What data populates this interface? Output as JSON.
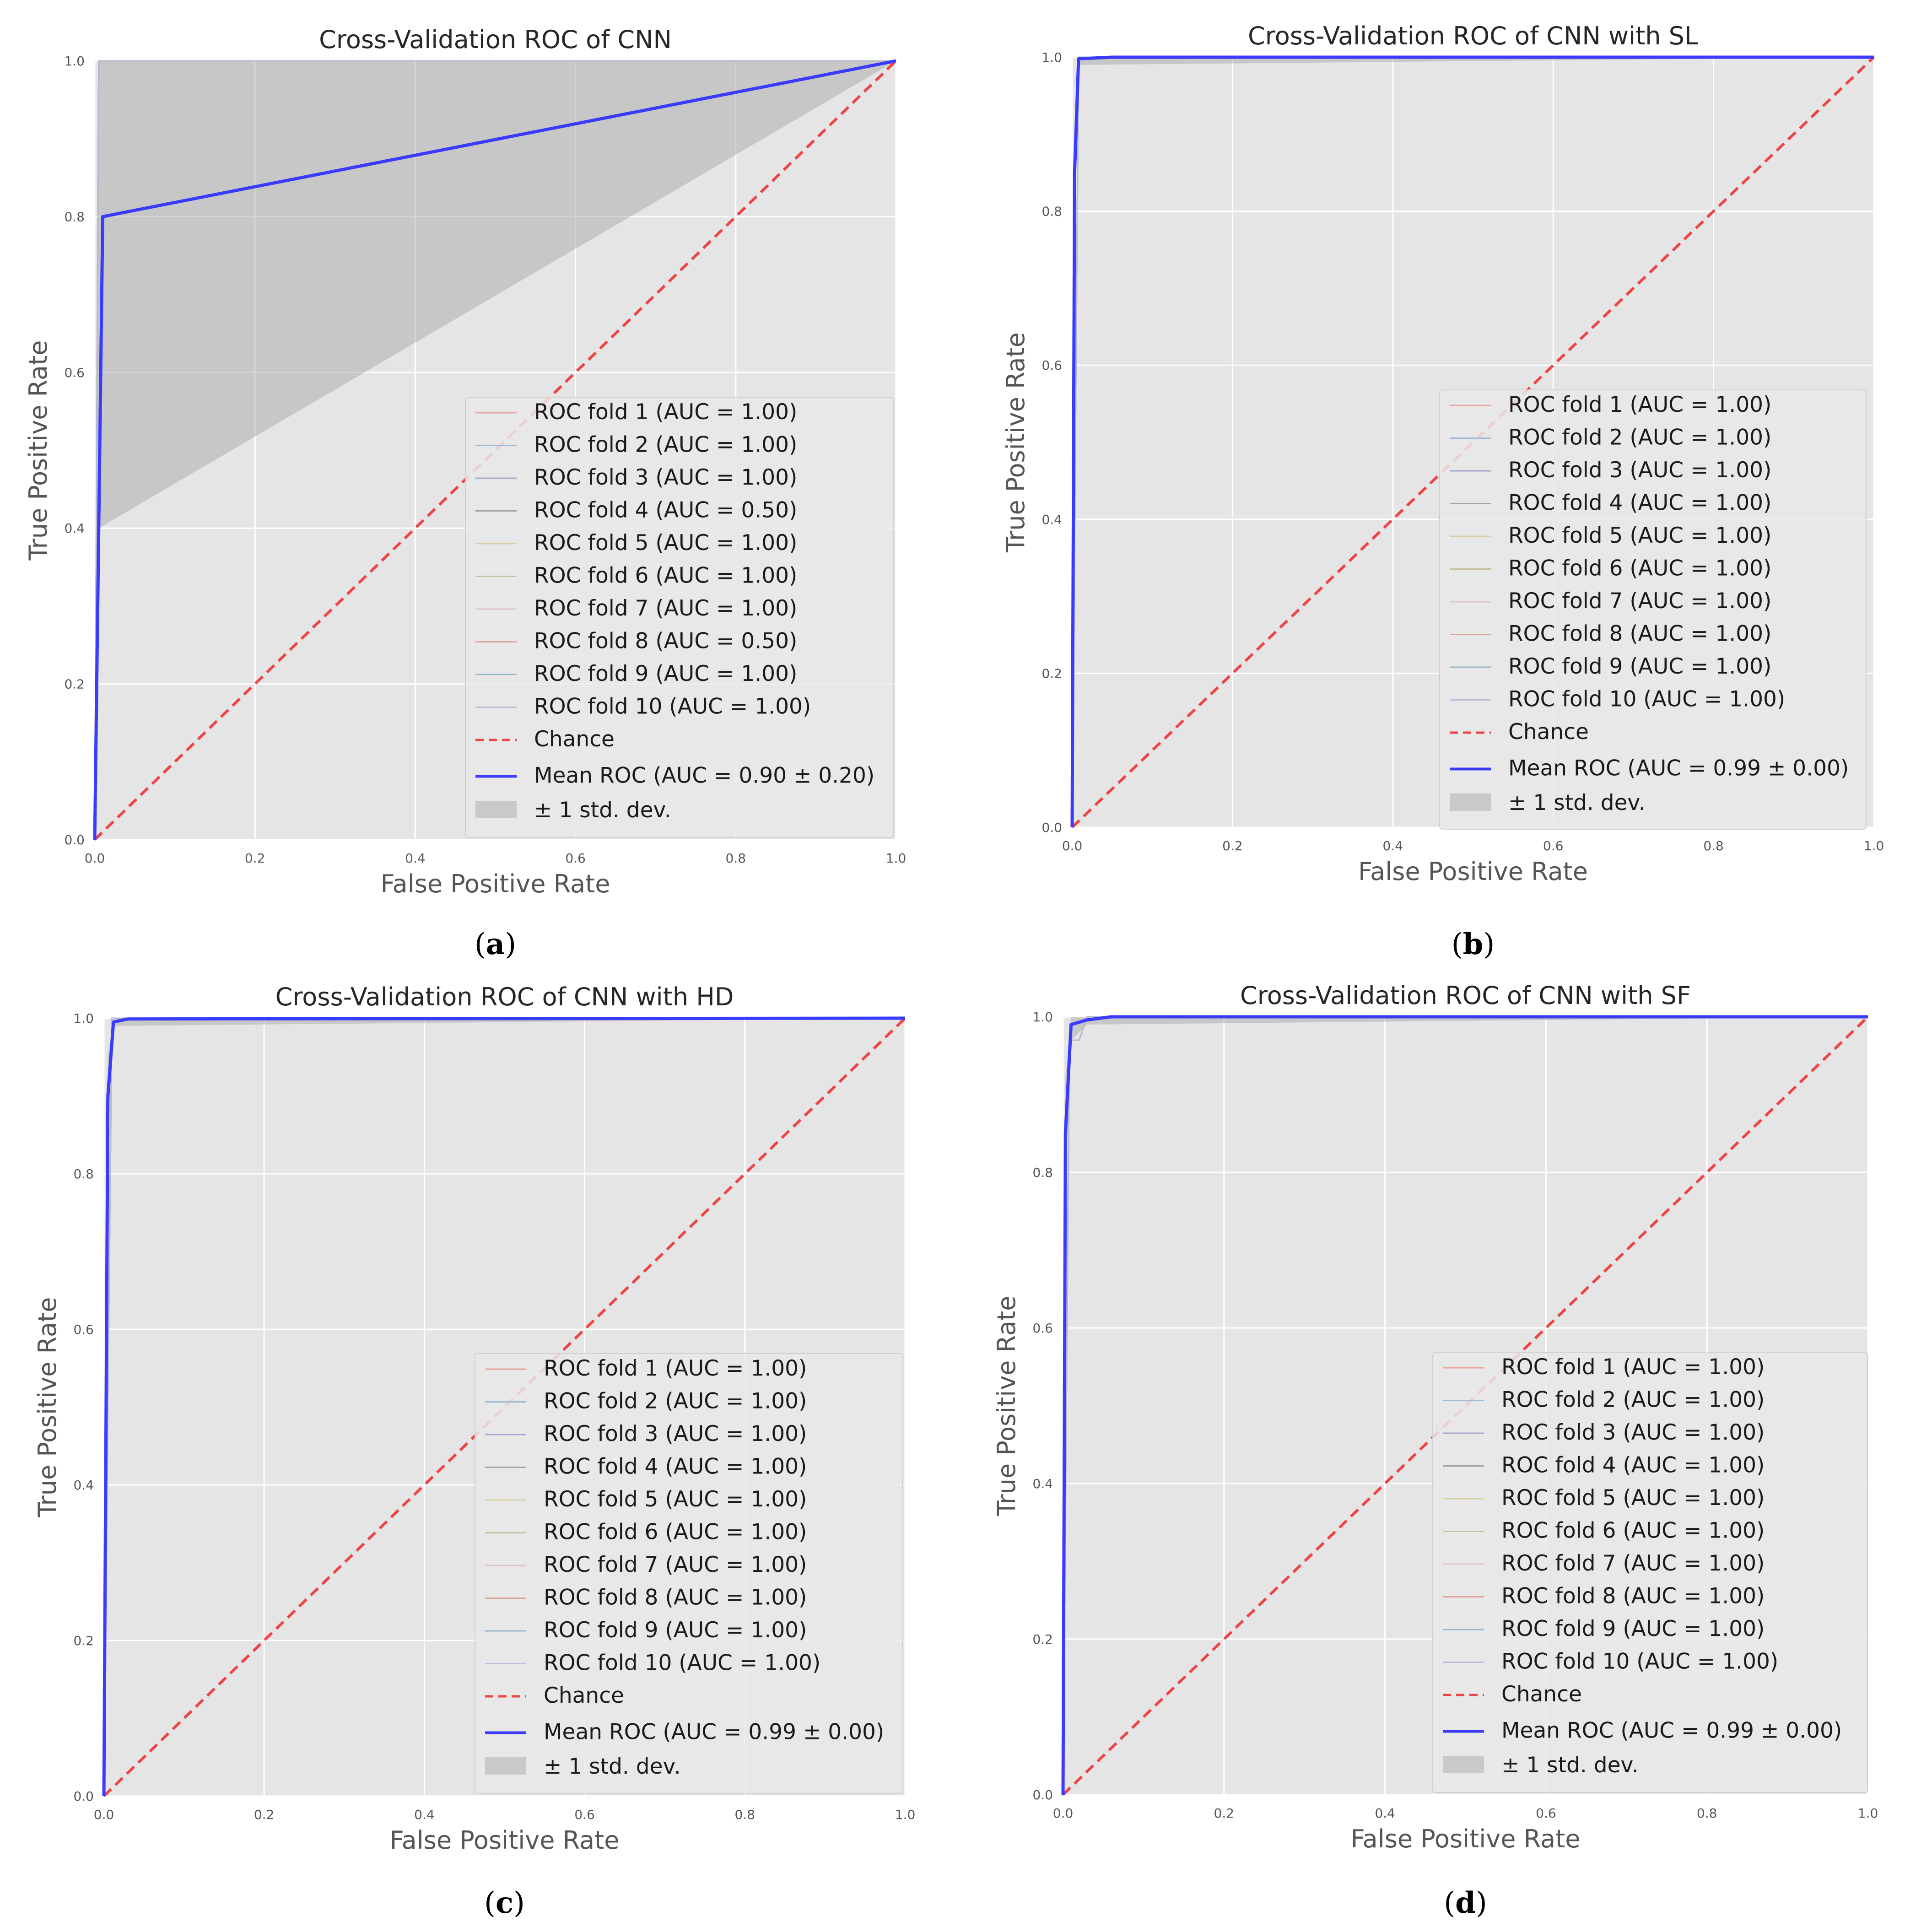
{
  "figure": {
    "background": "#ffffff"
  },
  "colors": {
    "plot_bg": "#e5e5e5",
    "grid": "#ffffff",
    "mean": "#3b3bff",
    "chance": "#ee4444",
    "band": "#a9a9a9",
    "legend_bg": "#e9e9e9",
    "legend_border": "#d0d0d0",
    "fold_colors": [
      "#e8a59a",
      "#9fbad6",
      "#a6a9cf",
      "#9fa6ad",
      "#d8d0a4",
      "#c5c29c",
      "#e0c2c2",
      "#dda594",
      "#98b8cc",
      "#b9bedd"
    ]
  },
  "chart_data": [
    {
      "type": "line",
      "panel": "a",
      "caption": "(a)",
      "caption_letter": "a",
      "title": "Cross-Validation ROC of CNN",
      "xlabel": "False Positive Rate",
      "ylabel": "True Positive Rate",
      "xlim": [
        0,
        1
      ],
      "ylim": [
        0,
        1
      ],
      "xticks": [
        "0.0",
        "0.2",
        "0.4",
        "0.6",
        "0.8",
        "1.0"
      ],
      "yticks": [
        "0.0",
        "0.2",
        "0.4",
        "0.6",
        "0.8",
        "1.0"
      ],
      "grid": true,
      "legend_position": "lower-right",
      "folds": [
        {
          "label": "ROC fold 1 (AUC = 1.00)"
        },
        {
          "label": "ROC fold 2 (AUC = 1.00)"
        },
        {
          "label": "ROC fold 3 (AUC = 1.00)"
        },
        {
          "label": "ROC fold 4 (AUC = 0.50)"
        },
        {
          "label": "ROC fold 5 (AUC = 1.00)"
        },
        {
          "label": "ROC fold 6 (AUC = 1.00)"
        },
        {
          "label": "ROC fold 7 (AUC = 1.00)"
        },
        {
          "label": "ROC fold 8 (AUC = 0.50)"
        },
        {
          "label": "ROC fold 9 (AUC = 1.00)"
        },
        {
          "label": "ROC fold 10 (AUC = 1.00)"
        }
      ],
      "fold_curve": {
        "x": [
          0,
          0.005,
          1.0
        ],
        "y": [
          0,
          1.0,
          1.0
        ]
      },
      "chance": {
        "label": "Chance",
        "x": [
          0,
          1
        ],
        "y": [
          0,
          1
        ]
      },
      "mean_roc": {
        "label": "Mean ROC (AUC = 0.90 ± 0.20)",
        "x": [
          0,
          0.01,
          1.0
        ],
        "y": [
          0,
          0.8,
          1.0
        ]
      },
      "std_band": {
        "label": "± 1 std. dev.",
        "x": [
          0,
          0.005,
          1.0
        ],
        "upper": [
          0,
          1.0,
          1.0
        ],
        "lower": [
          0,
          0.4,
          1.0
        ]
      }
    },
    {
      "type": "line",
      "panel": "b",
      "caption": "(b)",
      "caption_letter": "b",
      "title": "Cross-Validation ROC of CNN with SL",
      "xlabel": "False Positive Rate",
      "ylabel": "True Positive Rate",
      "xlim": [
        0,
        1
      ],
      "ylim": [
        0,
        1
      ],
      "xticks": [
        "0.0",
        "0.2",
        "0.4",
        "0.6",
        "0.8",
        "1.0"
      ],
      "yticks": [
        "0.0",
        "0.2",
        "0.4",
        "0.6",
        "0.8",
        "1.0"
      ],
      "grid": true,
      "legend_position": "lower-right",
      "folds": [
        {
          "label": "ROC fold 1 (AUC = 1.00)"
        },
        {
          "label": "ROC fold 2 (AUC = 1.00)"
        },
        {
          "label": "ROC fold 3 (AUC = 1.00)"
        },
        {
          "label": "ROC fold 4 (AUC = 1.00)"
        },
        {
          "label": "ROC fold 5 (AUC = 1.00)"
        },
        {
          "label": "ROC fold 6 (AUC = 1.00)"
        },
        {
          "label": "ROC fold 7 (AUC = 1.00)"
        },
        {
          "label": "ROC fold 8 (AUC = 1.00)"
        },
        {
          "label": "ROC fold 9 (AUC = 1.00)"
        },
        {
          "label": "ROC fold 10 (AUC = 1.00)"
        }
      ],
      "fold_curve": {
        "x": [
          0,
          0.008,
          1.0
        ],
        "y": [
          0,
          1.0,
          1.0
        ]
      },
      "chance": {
        "label": "Chance",
        "x": [
          0,
          1
        ],
        "y": [
          0,
          1
        ]
      },
      "mean_roc": {
        "label": "Mean ROC (AUC = 0.99 ± 0.00)",
        "x": [
          0,
          0.003,
          0.008,
          0.05,
          1.0
        ],
        "y": [
          0,
          0.85,
          0.998,
          1.0,
          1.0
        ]
      },
      "std_band": {
        "label": "± 1 std. dev.",
        "x": [
          0,
          0.003,
          0.008,
          1.0
        ],
        "upper": [
          0,
          0.9,
          1.0,
          1.0
        ],
        "lower": [
          0,
          0.8,
          0.99,
          1.0
        ]
      }
    },
    {
      "type": "line",
      "panel": "c",
      "caption": "(c)",
      "caption_letter": "c",
      "title": "Cross-Validation ROC of CNN with HD",
      "xlabel": "False Positive Rate",
      "ylabel": "True Positive Rate",
      "xlim": [
        0,
        1
      ],
      "ylim": [
        0,
        1
      ],
      "xticks": [
        "0.0",
        "0.2",
        "0.4",
        "0.6",
        "0.8",
        "1.0"
      ],
      "yticks": [
        "0.0",
        "0.2",
        "0.4",
        "0.6",
        "0.8",
        "1.0"
      ],
      "grid": true,
      "legend_position": "lower-right",
      "folds": [
        {
          "label": "ROC fold 1 (AUC = 1.00)"
        },
        {
          "label": "ROC fold 2 (AUC = 1.00)"
        },
        {
          "label": "ROC fold 3 (AUC = 1.00)"
        },
        {
          "label": "ROC fold 4 (AUC = 1.00)"
        },
        {
          "label": "ROC fold 5 (AUC = 1.00)"
        },
        {
          "label": "ROC fold 6 (AUC = 1.00)"
        },
        {
          "label": "ROC fold 7 (AUC = 1.00)"
        },
        {
          "label": "ROC fold 8 (AUC = 1.00)"
        },
        {
          "label": "ROC fold 9 (AUC = 1.00)"
        },
        {
          "label": "ROC fold 10 (AUC = 1.00)"
        }
      ],
      "fold_curve": {
        "x": [
          0,
          0.01,
          1.0
        ],
        "y": [
          0,
          1.0,
          1.0
        ]
      },
      "chance": {
        "label": "Chance",
        "x": [
          0,
          1
        ],
        "y": [
          0,
          1
        ]
      },
      "mean_roc": {
        "label": "Mean ROC (AUC = 0.99 ± 0.00)",
        "x": [
          0,
          0.005,
          0.012,
          0.03,
          1.0
        ],
        "y": [
          0,
          0.9,
          0.995,
          0.999,
          1.0
        ]
      },
      "std_band": {
        "label": "± 1 std. dev.",
        "x": [
          0,
          0.005,
          0.012,
          1.0
        ],
        "upper": [
          0,
          0.95,
          1.0,
          1.0
        ],
        "lower": [
          0,
          0.85,
          0.99,
          1.0
        ]
      }
    },
    {
      "type": "line",
      "panel": "d",
      "caption": "(d)",
      "caption_letter": "d",
      "title": "Cross-Validation ROC of CNN with SF",
      "xlabel": "False Positive Rate",
      "ylabel": "True Positive Rate",
      "xlim": [
        0,
        1
      ],
      "ylim": [
        0,
        1
      ],
      "xticks": [
        "0.0",
        "0.2",
        "0.4",
        "0.6",
        "0.8",
        "1.0"
      ],
      "yticks": [
        "0.0",
        "0.2",
        "0.4",
        "0.6",
        "0.8",
        "1.0"
      ],
      "grid": true,
      "legend_position": "lower-right",
      "folds": [
        {
          "label": "ROC fold 1 (AUC = 1.00)"
        },
        {
          "label": "ROC fold 2 (AUC = 1.00)"
        },
        {
          "label": "ROC fold 3 (AUC = 1.00)"
        },
        {
          "label": "ROC fold 4 (AUC = 1.00)"
        },
        {
          "label": "ROC fold 5 (AUC = 1.00)"
        },
        {
          "label": "ROC fold 6 (AUC = 1.00)"
        },
        {
          "label": "ROC fold 7 (AUC = 1.00)"
        },
        {
          "label": "ROC fold 8 (AUC = 1.00)"
        },
        {
          "label": "ROC fold 9 (AUC = 1.00)"
        },
        {
          "label": "ROC fold 10 (AUC = 1.00)"
        }
      ],
      "fold_curve": {
        "x": [
          0,
          0.008,
          0.02,
          0.03,
          1.0
        ],
        "y": [
          0,
          0.97,
          0.97,
          1.0,
          1.0
        ]
      },
      "chance": {
        "label": "Chance",
        "x": [
          0,
          1
        ],
        "y": [
          0,
          1
        ]
      },
      "mean_roc": {
        "label": "Mean ROC (AUC = 0.99 ± 0.00)",
        "x": [
          0,
          0.003,
          0.01,
          0.03,
          0.06,
          1.0
        ],
        "y": [
          0,
          0.85,
          0.99,
          0.996,
          1.0,
          1.0
        ]
      },
      "std_band": {
        "label": "± 1 std. dev.",
        "x": [
          0,
          0.003,
          0.01,
          0.03,
          1.0
        ],
        "upper": [
          0,
          0.92,
          1.0,
          1.0,
          1.0
        ],
        "lower": [
          0,
          0.78,
          0.97,
          0.99,
          1.0
        ]
      }
    }
  ]
}
